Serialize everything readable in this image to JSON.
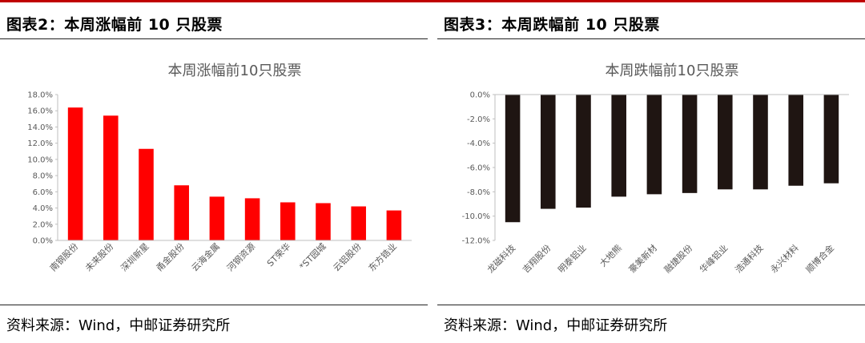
{
  "panels": [
    {
      "heading": "图表2：本周涨幅前 10 只股票",
      "source": "资料来源：Wind，中邮证券研究所"
    },
    {
      "heading": "图表3：本周跌幅前 10 只股票",
      "source": "资料来源：Wind，中邮证券研究所"
    }
  ],
  "chart_data": [
    {
      "type": "bar",
      "title": "本周涨幅前10只股票",
      "categories": [
        "南钢股份",
        "未来股份",
        "深圳新星",
        "甬金股份",
        "云海金属",
        "河钢资源",
        "ST荣华",
        "*ST园城",
        "云铝股份",
        "东方锆业"
      ],
      "values": [
        16.4,
        15.4,
        11.3,
        6.8,
        5.4,
        5.2,
        4.7,
        4.6,
        4.2,
        3.7
      ],
      "yticks": [
        "0.0%",
        "2.0%",
        "4.0%",
        "6.0%",
        "8.0%",
        "10.0%",
        "12.0%",
        "14.0%",
        "16.0%",
        "18.0%"
      ],
      "ylim": [
        0,
        18
      ],
      "color": "#ff0000"
    },
    {
      "type": "bar",
      "title": "本周跌幅前10只股票",
      "categories": [
        "龙磁科技",
        "吉翔股份",
        "明泰铝业",
        "大地熊",
        "豪美新材",
        "融捷股份",
        "华峰铝业",
        "浩通科技",
        "永兴材料",
        "顺博合金"
      ],
      "values": [
        -10.5,
        -9.4,
        -9.3,
        -8.4,
        -8.2,
        -8.1,
        -7.8,
        -7.8,
        -7.5,
        -7.3
      ],
      "yticks": [
        "0.0%",
        "-2.0%",
        "-4.0%",
        "-6.0%",
        "-8.0%",
        "-10.0%",
        "-12.0%"
      ],
      "ylim": [
        -12,
        0
      ],
      "color": "#1f1512"
    }
  ]
}
